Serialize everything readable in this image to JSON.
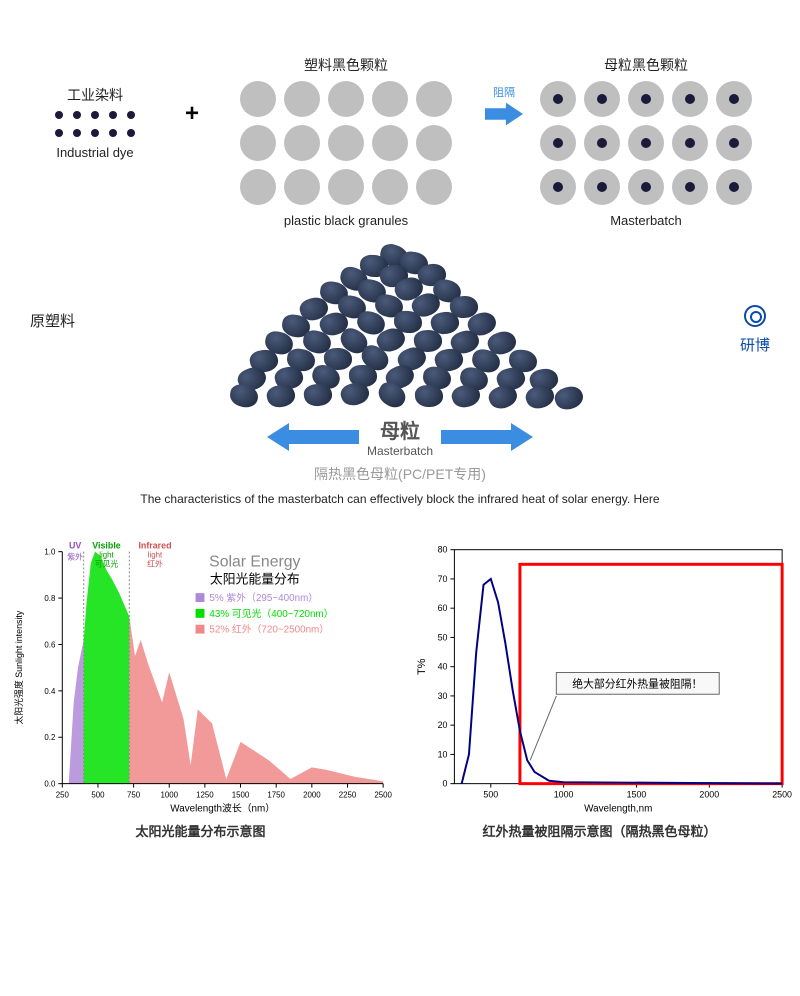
{
  "top_diagram": {
    "block_a": {
      "top": "工业染料",
      "bottom": "Industrial dye",
      "dot_rows": 2,
      "dot_cols": 5
    },
    "plus": "+",
    "block_b": {
      "top": "塑料黑色颗粒",
      "bottom": "plastic black granules",
      "rows": 3,
      "cols": 5,
      "circle_color": "#bfbfbf"
    },
    "block_c": {
      "top": "母粒黑色颗粒",
      "bottom": "Masterbatch",
      "rows": 3,
      "cols": 5,
      "circle_color": "#bfbfbf",
      "has_inner": true
    },
    "arrow_label": "阻隔",
    "arrow_color": "#3a8de0"
  },
  "master": {
    "left": "原塑料",
    "right_brand": "研博",
    "right_en": "...",
    "center": "母粒",
    "center_en": "Masterbatch",
    "sub1": "隔热黑色母粒(PC/PET专用)",
    "sub2": "The characteristics of the masterbatch can effectively block the infrared heat of solar energy. Here"
  },
  "chart1": {
    "type": "area",
    "title": "Solar Energy",
    "title_cn": "太阳光能量分布",
    "x_label": "Wavelength波长（nm）",
    "y_label": "太阳光强度 Sunlight intensity",
    "xlim": [
      250,
      2500
    ],
    "ylim": [
      0,
      1.0
    ],
    "xticks": [
      250,
      500,
      750,
      1000,
      1250,
      1500,
      1750,
      2000,
      2250,
      2500
    ],
    "yticks": [
      0.0,
      0.2,
      0.4,
      0.6,
      0.8,
      1.0
    ],
    "regions": [
      {
        "name": "UV",
        "cn": "紫外",
        "color": "#b088d8",
        "pct": "5%",
        "range": "紫外（295~400nm）",
        "x_range": [
          295,
          400
        ]
      },
      {
        "name": "Visible light",
        "cn": "可见光",
        "color": "#00e000",
        "pct": "43%",
        "range": "可见光（400~720nm）",
        "x_range": [
          400,
          720
        ]
      },
      {
        "name": "Infrared light",
        "cn": "红外",
        "color": "#f08888",
        "pct": "52%",
        "range": "红外（720~2500nm）",
        "x_range": [
          720,
          2500
        ]
      }
    ],
    "caption": "太阳光能量分布示意图",
    "label_fontsize": 10,
    "title_fontsize": 16,
    "bg": "#ffffff"
  },
  "chart2": {
    "type": "line",
    "y_label": "T%",
    "x_label": "Wavelength,nm",
    "xlim": [
      250,
      2500
    ],
    "ylim": [
      0,
      80
    ],
    "xticks": [
      500,
      1000,
      1500,
      2000,
      2500
    ],
    "yticks": [
      0,
      10,
      20,
      30,
      40,
      50,
      60,
      70,
      80
    ],
    "line_color": "#000080",
    "line_width": 2,
    "red_box": {
      "x": [
        700,
        2500
      ],
      "y": [
        0,
        75
      ],
      "stroke": "#ff0000",
      "width": 3
    },
    "callout": "绝大部分红外热量被阻隔！",
    "callout_bg": "#f8f8f8",
    "callout_border": "#666",
    "curve": [
      [
        300,
        0
      ],
      [
        350,
        10
      ],
      [
        400,
        45
      ],
      [
        450,
        68
      ],
      [
        500,
        70
      ],
      [
        550,
        62
      ],
      [
        600,
        48
      ],
      [
        650,
        32
      ],
      [
        700,
        18
      ],
      [
        750,
        8
      ],
      [
        800,
        4
      ],
      [
        900,
        1
      ],
      [
        1000,
        0.5
      ],
      [
        2500,
        0
      ]
    ],
    "caption": "红外热量被阻隔示意图（隔热黑色母粒）",
    "bg": "#ffffff",
    "axis_color": "#000",
    "tick_fontsize": 9
  }
}
